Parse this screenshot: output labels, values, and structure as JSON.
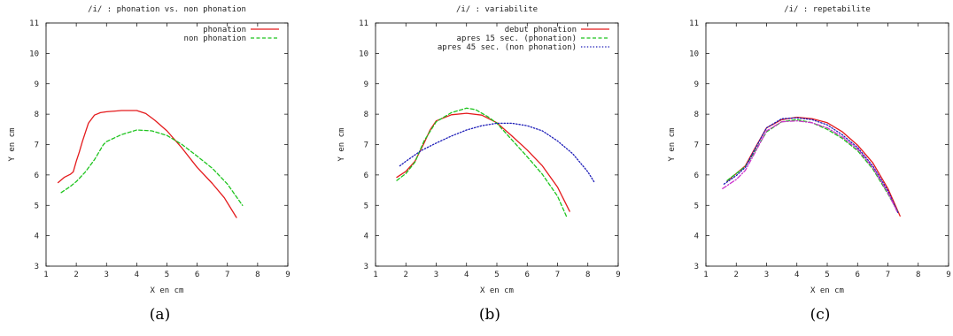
{
  "chart_data": [
    {
      "type": "line",
      "title": "/i/ : phonation vs. non phonation",
      "xlabel": "X en cm",
      "ylabel": "Y en cm",
      "xlim": [
        1,
        9
      ],
      "ylim": [
        3,
        11
      ],
      "xticks": [
        "1",
        "2",
        "3",
        "4",
        "5",
        "6",
        "7",
        "8",
        "9"
      ],
      "yticks": [
        "3",
        "4",
        "5",
        "6",
        "7",
        "8",
        "9",
        "10",
        "11"
      ],
      "caption": "(a)",
      "legend_position": "top-right",
      "series": [
        {
          "name": "phonation",
          "color": "#e41a1c",
          "dash": "solid",
          "x": [
            1.4,
            1.6,
            1.8,
            1.9,
            2.0,
            2.1,
            2.2,
            2.4,
            2.6,
            2.8,
            3.0,
            3.5,
            4.0,
            4.3,
            4.6,
            5.0,
            5.5,
            6.0,
            6.5,
            6.9,
            7.3
          ],
          "y": [
            5.75,
            5.92,
            6.02,
            6.1,
            6.45,
            6.75,
            7.1,
            7.7,
            7.97,
            8.05,
            8.08,
            8.12,
            8.12,
            8.02,
            7.8,
            7.45,
            6.88,
            6.25,
            5.72,
            5.25,
            4.6
          ]
        },
        {
          "name": "non phonation",
          "color": "#1ec41e",
          "dash": "dashed",
          "x": [
            1.5,
            1.8,
            2.0,
            2.3,
            2.6,
            2.9,
            3.0,
            3.5,
            4.0,
            4.5,
            5.0,
            5.5,
            6.0,
            6.5,
            7.0,
            7.5
          ],
          "y": [
            5.42,
            5.62,
            5.78,
            6.1,
            6.5,
            7.0,
            7.1,
            7.33,
            7.48,
            7.45,
            7.3,
            7.0,
            6.62,
            6.22,
            5.7,
            5.0
          ]
        }
      ]
    },
    {
      "type": "line",
      "title": "/i/ : variabilite",
      "xlabel": "X en cm",
      "ylabel": "Y en cm",
      "xlim": [
        1,
        9
      ],
      "ylim": [
        3,
        11
      ],
      "xticks": [
        "1",
        "2",
        "3",
        "4",
        "5",
        "6",
        "7",
        "8",
        "9"
      ],
      "yticks": [
        "3",
        "4",
        "5",
        "6",
        "7",
        "8",
        "9",
        "10",
        "11"
      ],
      "caption": "(b)",
      "legend_position": "top-right",
      "series": [
        {
          "name": "debut phonation",
          "color": "#e41a1c",
          "dash": "solid",
          "x": [
            1.7,
            2.0,
            2.3,
            2.6,
            2.8,
            3.0,
            3.5,
            4.0,
            4.5,
            5.0,
            5.5,
            6.0,
            6.5,
            7.0,
            7.4
          ],
          "y": [
            5.92,
            6.12,
            6.45,
            7.05,
            7.48,
            7.78,
            7.98,
            8.03,
            7.97,
            7.72,
            7.28,
            6.82,
            6.3,
            5.6,
            4.8
          ]
        },
        {
          "name": "apres 15 sec. (phonation)",
          "color": "#1ec41e",
          "dash": "dashed",
          "x": [
            1.7,
            2.0,
            2.3,
            2.6,
            3.0,
            3.5,
            4.0,
            4.3,
            4.7,
            5.0,
            5.5,
            6.0,
            6.5,
            7.0,
            7.3
          ],
          "y": [
            5.82,
            6.05,
            6.42,
            7.12,
            7.75,
            8.05,
            8.2,
            8.15,
            7.92,
            7.7,
            7.15,
            6.6,
            6.02,
            5.3,
            4.62
          ]
        },
        {
          "name": "apres 45 sec. (non phonation)",
          "color": "#1c1cb8",
          "dash": "dotted",
          "x": [
            1.8,
            2.0,
            2.5,
            3.0,
            3.5,
            4.0,
            4.5,
            5.0,
            5.5,
            6.0,
            6.5,
            7.0,
            7.5,
            8.0,
            8.2
          ],
          "y": [
            6.3,
            6.45,
            6.8,
            7.05,
            7.28,
            7.48,
            7.62,
            7.7,
            7.7,
            7.62,
            7.45,
            7.12,
            6.7,
            6.1,
            5.78
          ]
        }
      ]
    },
    {
      "type": "line",
      "title": "/i/ : repetabilite",
      "xlabel": "X en cm",
      "ylabel": "Y en cm",
      "xlim": [
        1,
        9
      ],
      "ylim": [
        3,
        11
      ],
      "xticks": [
        "1",
        "2",
        "3",
        "4",
        "5",
        "6",
        "7",
        "8",
        "9"
      ],
      "yticks": [
        "3",
        "4",
        "5",
        "6",
        "7",
        "8",
        "9",
        "10",
        "11"
      ],
      "caption": "(c)",
      "legend_position": "none",
      "series": [
        {
          "color": "#e41a1c",
          "dash": "solid",
          "x": [
            1.7,
            2.0,
            2.3,
            2.6,
            3.0,
            3.5,
            4.0,
            4.5,
            5.0,
            5.5,
            6.0,
            6.5,
            7.0,
            7.2,
            7.4
          ],
          "y": [
            5.8,
            6.05,
            6.3,
            6.85,
            7.55,
            7.82,
            7.9,
            7.85,
            7.72,
            7.42,
            6.98,
            6.4,
            5.55,
            5.1,
            4.65
          ]
        },
        {
          "color": "#1ec41e",
          "dash": "dashed",
          "x": [
            1.7,
            2.0,
            2.3,
            2.6,
            3.0,
            3.5,
            4.0,
            4.5,
            5.0,
            5.5,
            6.0,
            6.5,
            7.0,
            7.35
          ],
          "y": [
            5.82,
            6.05,
            6.28,
            6.75,
            7.42,
            7.75,
            7.82,
            7.72,
            7.5,
            7.2,
            6.8,
            6.2,
            5.38,
            4.75
          ]
        },
        {
          "color": "#1c1cb8",
          "dash": "dotted",
          "x": [
            1.6,
            2.0,
            2.3,
            2.6,
            3.0,
            3.5,
            4.0,
            4.5,
            5.0,
            5.5,
            6.0,
            6.5,
            7.0,
            7.35
          ],
          "y": [
            5.7,
            5.98,
            6.25,
            6.82,
            7.55,
            7.85,
            7.88,
            7.82,
            7.65,
            7.32,
            6.9,
            6.3,
            5.48,
            4.72
          ]
        },
        {
          "color": "#cc33cc",
          "dash": "dashdot",
          "x": [
            1.55,
            2.0,
            2.3,
            2.6,
            3.0,
            3.5,
            4.0,
            4.5,
            5.0,
            5.5,
            6.0,
            6.5,
            7.0,
            7.3
          ],
          "y": [
            5.55,
            5.85,
            6.15,
            6.7,
            7.45,
            7.75,
            7.78,
            7.72,
            7.55,
            7.25,
            6.85,
            6.25,
            5.42,
            4.8
          ]
        }
      ]
    }
  ]
}
